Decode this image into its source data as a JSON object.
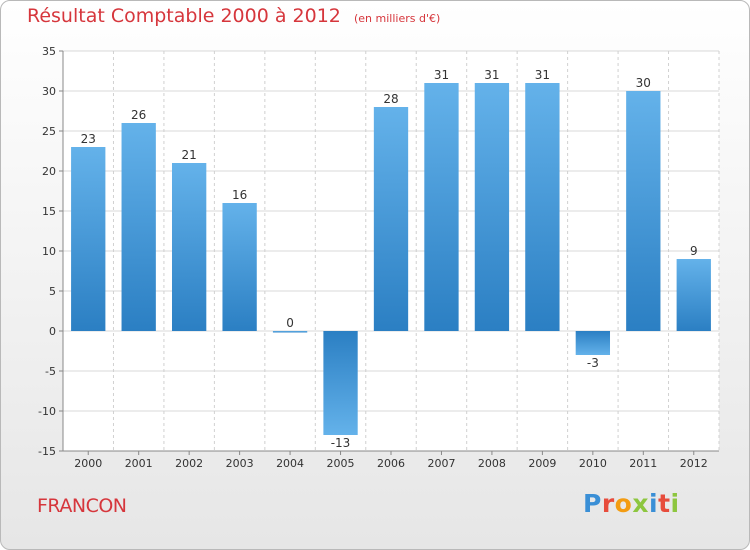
{
  "title": "Résultat Comptable 2000 à 2012",
  "subtitle": "(en milliers d'€)",
  "footer": "FRANCON",
  "logo": {
    "text": "Proxiti",
    "letters": [
      {
        "ch": "P",
        "color": "#3a8fd6"
      },
      {
        "ch": "r",
        "color": "#e74c3c"
      },
      {
        "ch": "o",
        "color": "#f39c12"
      },
      {
        "ch": "x",
        "color": "#8dc63f"
      },
      {
        "ch": "i",
        "color": "#3a8fd6"
      },
      {
        "ch": "t",
        "color": "#e74c3c"
      },
      {
        "ch": "i",
        "color": "#8dc63f"
      }
    ]
  },
  "colors": {
    "bar_light": "#64b2ea",
    "bar_dark": "#2b7fc3",
    "title": "#d6363c"
  },
  "chart_data": {
    "type": "bar",
    "categories": [
      "2000",
      "2001",
      "2002",
      "2003",
      "2004",
      "2005",
      "2006",
      "2007",
      "2008",
      "2009",
      "2010",
      "2011",
      "2012"
    ],
    "values": [
      23,
      26,
      21,
      16,
      0,
      -13,
      28,
      31,
      31,
      31,
      -3,
      30,
      9
    ],
    "ylim": [
      -15,
      35
    ],
    "yticks": [
      -15,
      -10,
      -5,
      0,
      5,
      10,
      15,
      20,
      25,
      30,
      35
    ],
    "grid": true,
    "legend": "none"
  }
}
